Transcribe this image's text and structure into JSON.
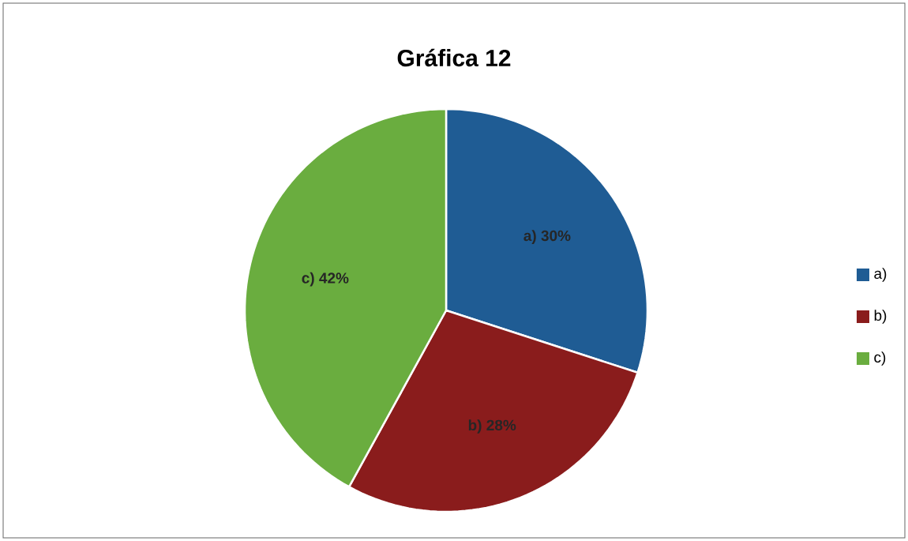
{
  "chart_data": {
    "type": "pie",
    "title": "Gráfica 12",
    "categories": [
      "a)",
      "b)",
      "c)"
    ],
    "values": [
      30,
      28,
      42
    ],
    "colors": [
      "#1f5c94",
      "#8a1c1c",
      "#6aad3f"
    ],
    "value_labels": [
      "a) 30%",
      "b) 28%",
      "c) 42%"
    ],
    "legend": "right"
  }
}
